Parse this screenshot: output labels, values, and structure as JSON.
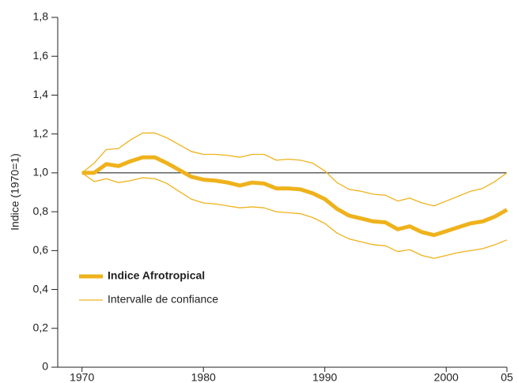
{
  "chart_data": {
    "type": "line",
    "ylabel": "Indice (1970=1)",
    "x": [
      1970,
      1971,
      1972,
      1973,
      1974,
      1975,
      1976,
      1977,
      1978,
      1979,
      1980,
      1981,
      1982,
      1983,
      1984,
      1985,
      1986,
      1987,
      1988,
      1989,
      1990,
      1991,
      1992,
      1993,
      1994,
      1995,
      1996,
      1997,
      1998,
      1999,
      2000,
      2001,
      2002,
      2003,
      2004,
      2005
    ],
    "series": [
      {
        "name": "Indice Afrotropical",
        "color": "#efb21c",
        "values": [
          1.0,
          1.0,
          1.045,
          1.035,
          1.06,
          1.08,
          1.08,
          1.05,
          1.015,
          0.98,
          0.965,
          0.96,
          0.95,
          0.935,
          0.95,
          0.945,
          0.92,
          0.92,
          0.915,
          0.895,
          0.865,
          0.815,
          0.78,
          0.765,
          0.75,
          0.745,
          0.71,
          0.725,
          0.695,
          0.68,
          0.7,
          0.72,
          0.74,
          0.75,
          0.775,
          0.81
        ]
      },
      {
        "name": "Intervalle de confiance",
        "color": "#efb21c",
        "upper": [
          1.0,
          1.05,
          1.12,
          1.125,
          1.17,
          1.205,
          1.205,
          1.18,
          1.145,
          1.11,
          1.095,
          1.095,
          1.09,
          1.08,
          1.095,
          1.095,
          1.065,
          1.07,
          1.065,
          1.05,
          1.01,
          0.95,
          0.915,
          0.905,
          0.89,
          0.885,
          0.855,
          0.87,
          0.845,
          0.83,
          0.855,
          0.88,
          0.905,
          0.92,
          0.955,
          1.0
        ],
        "lower": [
          1.0,
          0.955,
          0.97,
          0.95,
          0.96,
          0.975,
          0.97,
          0.945,
          0.905,
          0.865,
          0.845,
          0.84,
          0.83,
          0.82,
          0.825,
          0.82,
          0.8,
          0.795,
          0.79,
          0.77,
          0.74,
          0.69,
          0.66,
          0.645,
          0.63,
          0.625,
          0.595,
          0.605,
          0.575,
          0.56,
          0.575,
          0.59,
          0.6,
          0.61,
          0.63,
          0.655
        ]
      }
    ],
    "reference_line": 1.0,
    "xlim": [
      1968,
      2005
    ],
    "xticks": [
      1970,
      1980,
      1990,
      2000,
      {
        "value": 2005,
        "label": "05"
      }
    ],
    "ylim": [
      0,
      1.8
    ],
    "yticks": [
      0,
      {
        "value": 0.2,
        "label": "0,2"
      },
      {
        "value": 0.4,
        "label": "0,4"
      },
      {
        "value": 0.6,
        "label": "0,6"
      },
      {
        "value": 0.8,
        "label": "0,8"
      },
      {
        "value": 1.0,
        "label": "1,0"
      },
      {
        "value": 1.2,
        "label": "1,2"
      },
      {
        "value": 1.4,
        "label": "1,4"
      },
      {
        "value": 1.6,
        "label": "1,6"
      },
      {
        "value": 1.8,
        "label": "1,8"
      }
    ],
    "legend": "lower-left"
  }
}
